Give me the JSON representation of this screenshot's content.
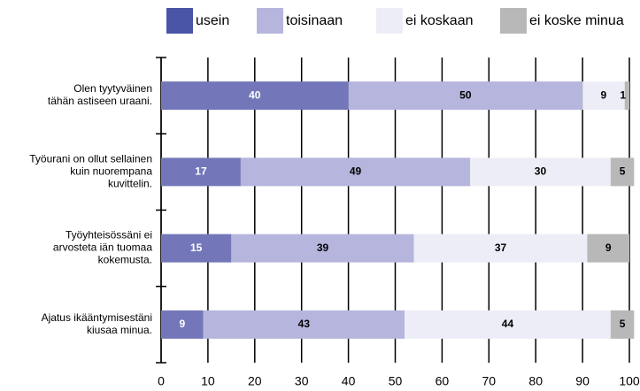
{
  "chart_data": {
    "type": "stacked_barh",
    "categories": [
      "Olen tyytyväinen\ntähän astiseen uraani.",
      "Työurani on ollut sellainen\nkuin nuorempana\nkuvittelin.",
      "Työyhteisössäni ei\narvosteta iän tuomaa\nkokemusta.",
      "Ajatus ikääntymisestäni\nkiusaa minua."
    ],
    "series": [
      {
        "name": "usein",
        "color": "#7377b9",
        "values": [
          40,
          17,
          15,
          9
        ]
      },
      {
        "name": "toisinaan",
        "color": "#b5b5dd",
        "values": [
          50,
          49,
          39,
          43
        ]
      },
      {
        "name": "ei koskaan",
        "color": "#ededf7",
        "values": [
          9,
          30,
          37,
          44
        ]
      },
      {
        "name": "ei koske minua",
        "color": "#b8b8b8",
        "values": [
          1,
          5,
          9,
          5
        ]
      }
    ],
    "xlim": [
      0,
      100
    ],
    "xticks": [
      0,
      10,
      20,
      30,
      40,
      50,
      60,
      70,
      80,
      90,
      100
    ],
    "grid": true,
    "legend": "top"
  }
}
